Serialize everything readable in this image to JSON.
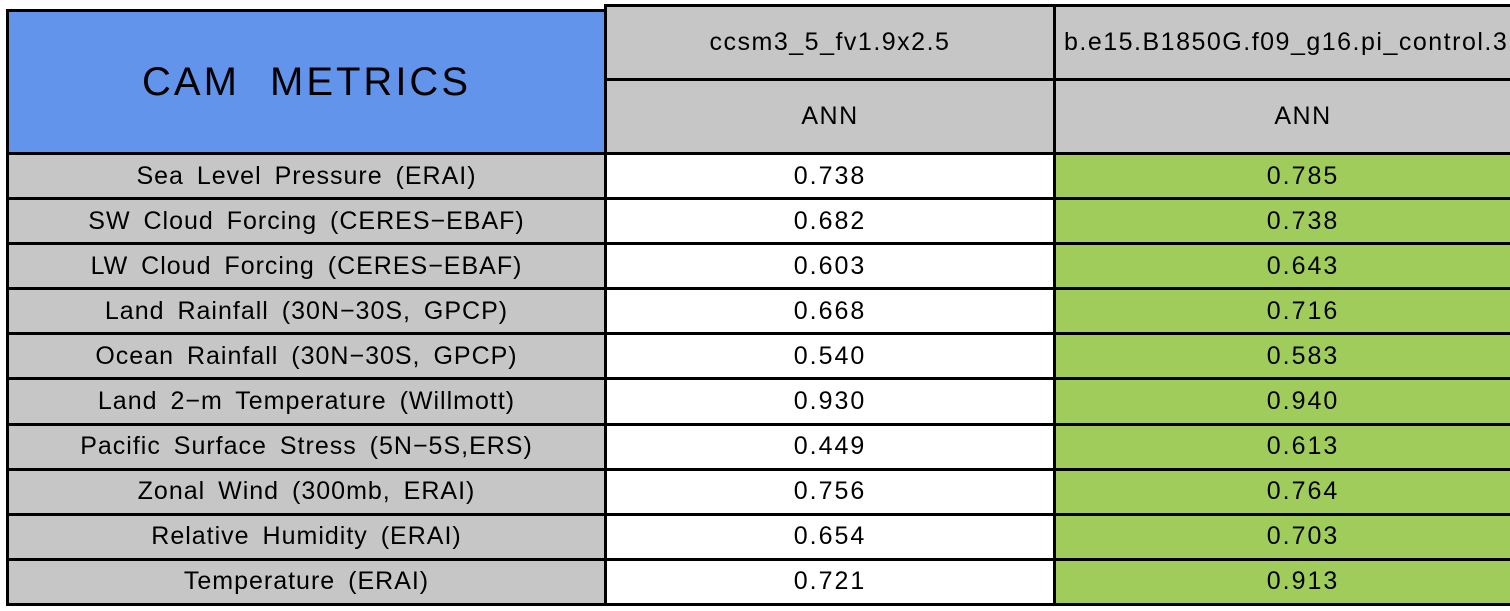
{
  "title": "CAM METRICS",
  "columns": [
    {
      "model": "ccsm3_5_fv1.9x2.5",
      "season": "ANN"
    },
    {
      "model": "b.e15.B1850G.f09_g16.pi_control.3",
      "season": "ANN"
    }
  ],
  "rows": [
    {
      "label": "Sea Level Pressure (ERAI)",
      "values": [
        "0.738",
        "0.785"
      ]
    },
    {
      "label": "SW Cloud Forcing (CERES−EBAF)",
      "values": [
        "0.682",
        "0.738"
      ]
    },
    {
      "label": "LW Cloud Forcing (CERES−EBAF)",
      "values": [
        "0.603",
        "0.643"
      ]
    },
    {
      "label": "Land Rainfall (30N−30S, GPCP)",
      "values": [
        "0.668",
        "0.716"
      ]
    },
    {
      "label": "Ocean Rainfall (30N−30S, GPCP)",
      "values": [
        "0.540",
        "0.583"
      ]
    },
    {
      "label": "Land 2−m Temperature (Willmott)",
      "values": [
        "0.930",
        "0.940"
      ]
    },
    {
      "label": "Pacific Surface Stress (5N−5S,ERS)",
      "values": [
        "0.449",
        "0.613"
      ]
    },
    {
      "label": "Zonal Wind (300mb, ERAI)",
      "values": [
        "0.756",
        "0.764"
      ]
    },
    {
      "label": "Relative Humidity (ERAI)",
      "values": [
        "0.654",
        "0.703"
      ]
    },
    {
      "label": "Temperature (ERAI)",
      "values": [
        "0.721",
        "0.913"
      ]
    }
  ],
  "colors": {
    "title_cell_blue": "#6394ec",
    "header_and_label_gray": "#c6c6c6",
    "highlight_green": "#a0cc5c",
    "plain_value_white": "#ffffff",
    "grid_line_black": "#000000"
  },
  "chart_data": {
    "type": "table",
    "title": "CAM METRICS",
    "column_headers": [
      "CAM METRICS",
      "ccsm3_5_fv1.9x2.5 — ANN",
      "b.e15.B1850G.f09_g16.pi_control.3 — ANN"
    ],
    "row_labels": [
      "Sea Level Pressure (ERAI)",
      "SW Cloud Forcing (CERES-EBAF)",
      "LW Cloud Forcing (CERES-EBAF)",
      "Land Rainfall (30N-30S, GPCP)",
      "Ocean Rainfall (30N-30S, GPCP)",
      "Land 2-m Temperature (Willmott)",
      "Pacific Surface Stress (5N-5S,ERS)",
      "Zonal Wind (300mb, ERAI)",
      "Relative Humidity (ERAI)",
      "Temperature (ERAI)"
    ],
    "series": [
      {
        "name": "ccsm3_5_fv1.9x2.5 ANN",
        "values": [
          0.738,
          0.682,
          0.603,
          0.668,
          0.54,
          0.93,
          0.449,
          0.756,
          0.654,
          0.721
        ]
      },
      {
        "name": "b.e15.B1850G.f09_g16.pi_control.3 ANN",
        "values": [
          0.785,
          0.738,
          0.643,
          0.716,
          0.583,
          0.94,
          0.613,
          0.764,
          0.703,
          0.913
        ],
        "highlighted": true
      }
    ],
    "layout_hints": {
      "second_series_cells_highlighted_green": true,
      "right_column_clipped_at_image_edge": true,
      "grid": true
    }
  }
}
